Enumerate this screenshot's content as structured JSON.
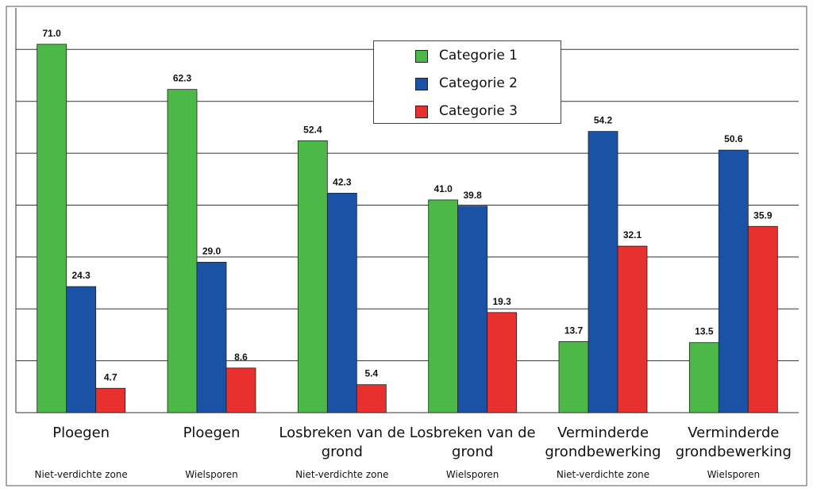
{
  "chart_data": {
    "type": "bar",
    "categories": [
      "Ploegen",
      "Ploegen",
      "Losbreken van de grond",
      "Losbreken van de grond",
      "Verminderde grondbewerking",
      "Verminderde grondbewerking"
    ],
    "subcategories": [
      "Niet-verdichte zone",
      "Wielsporen",
      "Niet-verdichte zone",
      "Wielsporen",
      "Niet-verdichte zone",
      "Wielsporen"
    ],
    "series": [
      {
        "name": "Categorie 1",
        "color": "#4cb848",
        "values": [
          71,
          62.3,
          52.4,
          41,
          13.7,
          13.5
        ],
        "value_labels": [
          "71.0",
          "62.3",
          "52.4",
          "41.0",
          "13.7",
          "13.5"
        ]
      },
      {
        "name": "Categorie 2",
        "color": "#1a53a6",
        "values": [
          24.3,
          29,
          42.3,
          39.8,
          54.2,
          50.6
        ],
        "value_labels": [
          "24.3",
          "29.0",
          "42.3",
          "39.8",
          "54.2",
          "50.6"
        ]
      },
      {
        "name": "Categorie 3",
        "color": "#e8302e",
        "values": [
          4.7,
          8.6,
          5.4,
          19.3,
          32.1,
          35.9
        ],
        "value_labels": [
          "4.7",
          "8.6",
          "5.4",
          "19.3",
          "32.1",
          "35.9"
        ]
      }
    ],
    "ylim": [
      0,
      78
    ],
    "yticks": [
      10,
      20,
      30,
      40,
      50,
      60,
      70
    ],
    "grid": true
  }
}
